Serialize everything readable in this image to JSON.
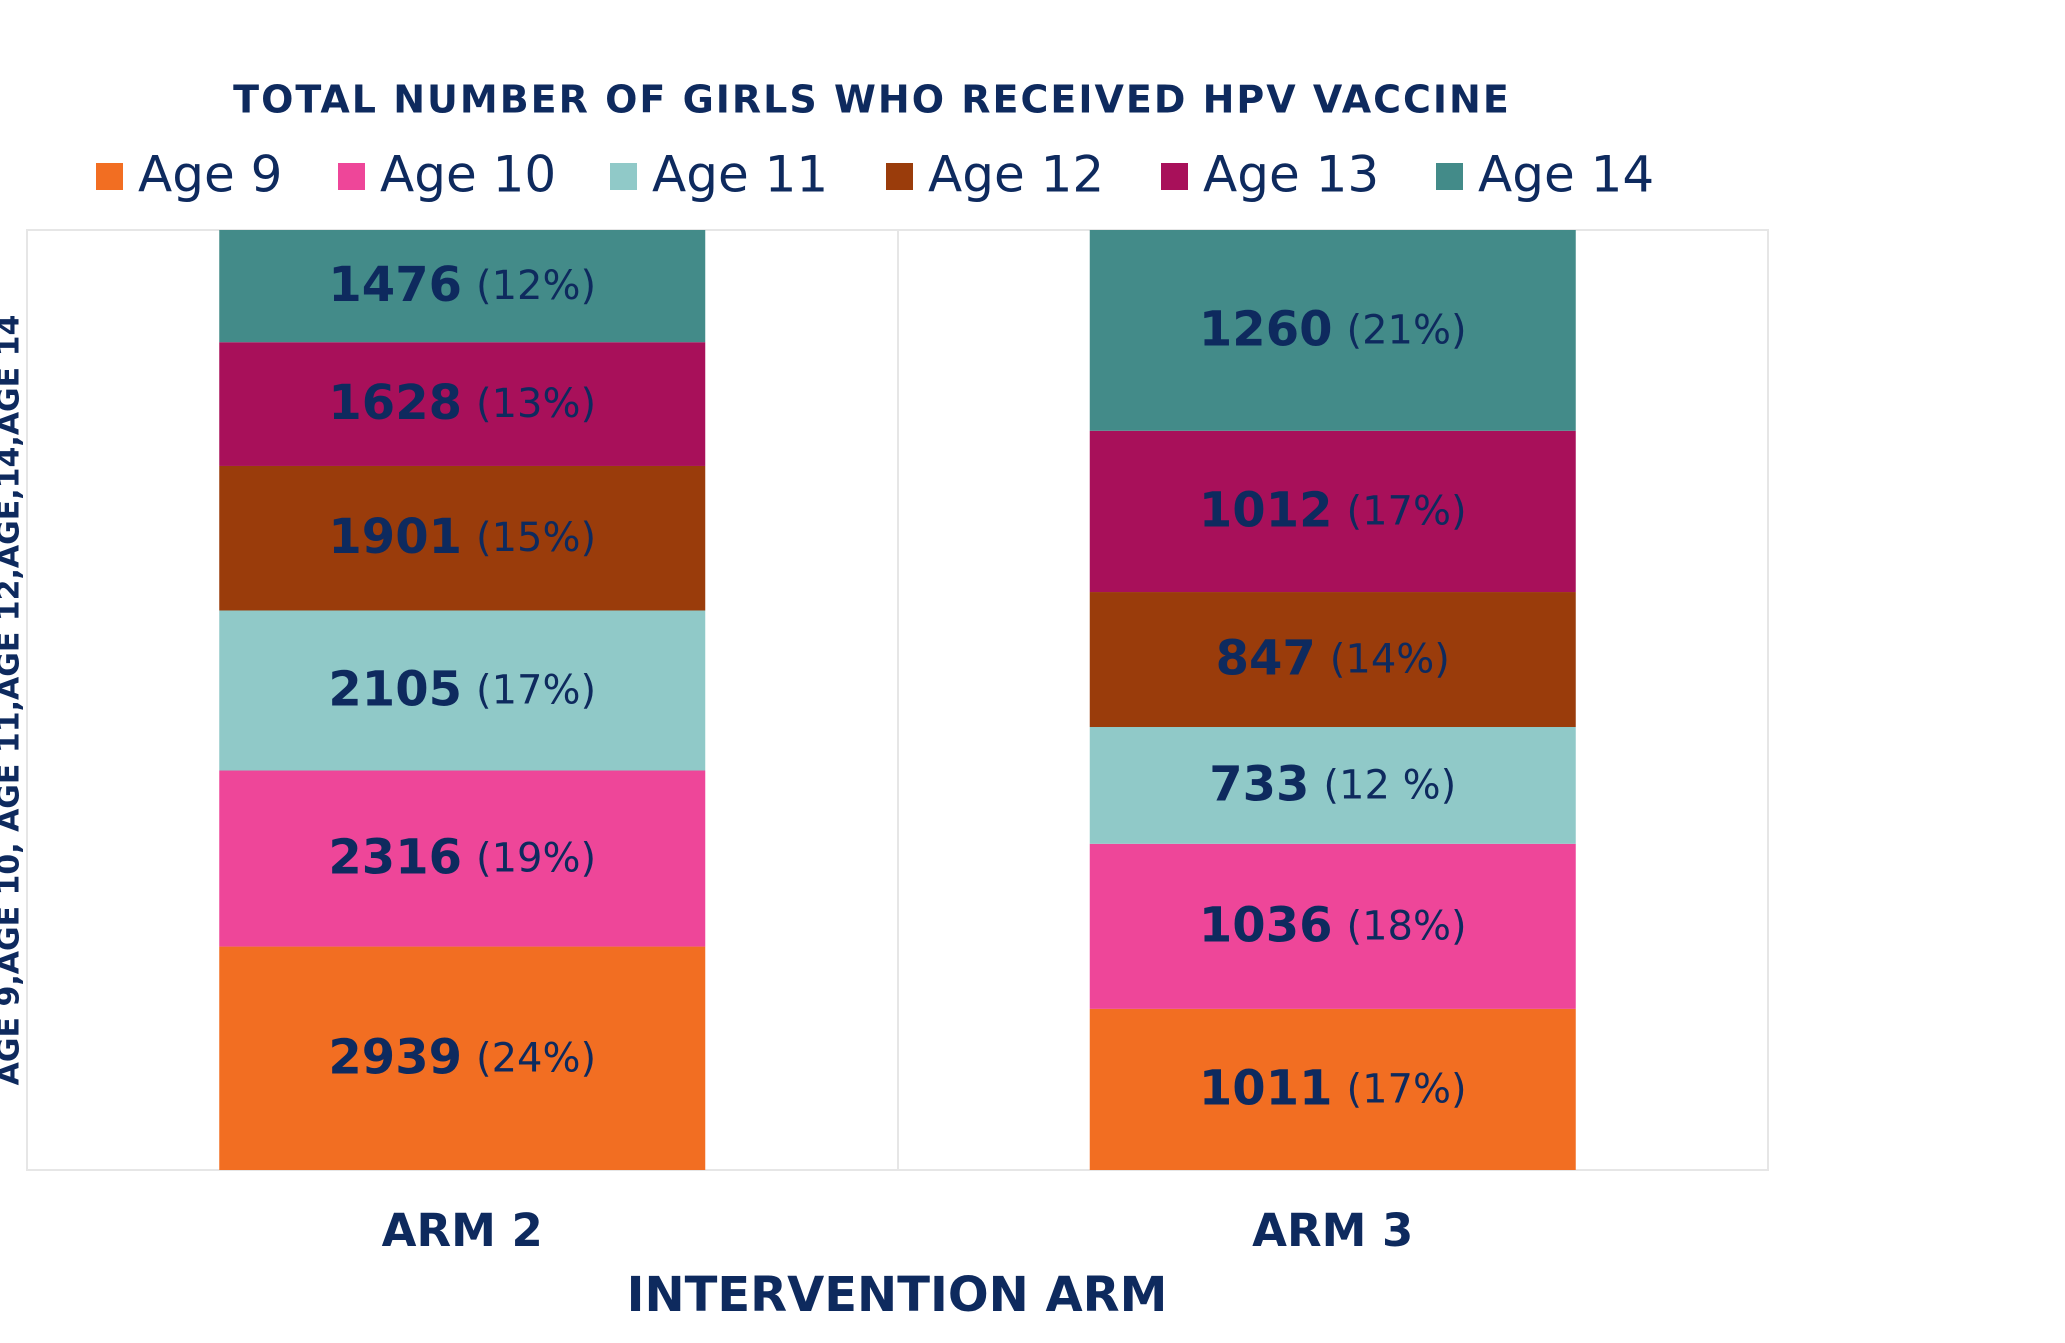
{
  "chart_data": {
    "type": "bar",
    "stacked": "percent",
    "title": "TOTAL NUMBER OF GIRLS WHO RECEIVED HPV VACCINE",
    "x_label": "INTERVENTION ARM",
    "y_label": "AGE 9,AGE 10, AGE 11,AGE 12,AGE,14,AGE 14",
    "categories": [
      "ARM 2",
      "ARM 3"
    ],
    "series": [
      {
        "name": "Age 9",
        "color": "#f26e22",
        "values": [
          2939,
          1011
        ],
        "percent_labels": [
          "(24%)",
          "(17%)"
        ]
      },
      {
        "name": "Age 10",
        "color": "#ee4699",
        "values": [
          2316,
          1036
        ],
        "percent_labels": [
          "(19%)",
          "(18%)"
        ]
      },
      {
        "name": "Age 11",
        "color": "#90c9c8",
        "values": [
          2105,
          733
        ],
        "percent_labels": [
          "(17%)",
          "(12 %)"
        ]
      },
      {
        "name": "Age 12",
        "color": "#9a3c0b",
        "values": [
          1901,
          847
        ],
        "percent_labels": [
          "(15%)",
          "(14%)"
        ]
      },
      {
        "name": "Age 13",
        "color": "#a8105a",
        "values": [
          1628,
          1012
        ],
        "percent_labels": [
          "(13%)",
          "(17%)"
        ]
      },
      {
        "name": "Age 14",
        "color": "#438b89",
        "values": [
          1476,
          1260
        ],
        "percent_labels": [
          "(12%)",
          "(21%)"
        ]
      }
    ],
    "legend": "top"
  }
}
